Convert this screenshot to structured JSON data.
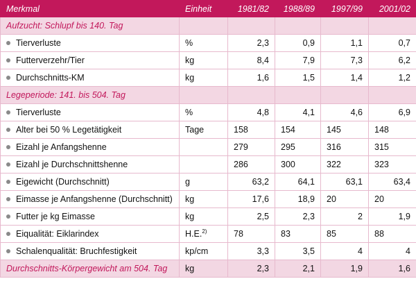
{
  "header": {
    "merkmal": "Merkmal",
    "einheit": "Einheit",
    "years": [
      "1981/82",
      "1988/89",
      "1997/99",
      "2001/02"
    ]
  },
  "sections": [
    {
      "title": "Aufzucht: Schlupf bis 140. Tag",
      "rows": [
        {
          "label": "Tierverluste",
          "unit": "%",
          "values": [
            "2,3",
            "0,9",
            "1,1",
            "0,7"
          ]
        },
        {
          "label": "Futterverzehr/Tier",
          "unit": "kg",
          "values": [
            "8,4",
            "7,9",
            "7,3",
            "6,2"
          ]
        },
        {
          "label": "Durchschnitts-KM",
          "unit": "kg",
          "values": [
            "1,6",
            "1,5",
            "1,4",
            "1,2"
          ]
        }
      ]
    },
    {
      "title": "Legeperiode: 141. bis 504. Tag",
      "rows": [
        {
          "label": "Tierverluste",
          "unit": "%",
          "values": [
            "4,8",
            "4,1",
            "4,6",
            "6,9"
          ]
        },
        {
          "label": "Alter bei 50 % Legetätigkeit",
          "unit": "Tage",
          "values": [
            "158",
            "154",
            "145",
            "148"
          ]
        },
        {
          "label": "Eizahl je Anfangshenne",
          "unit": "",
          "values": [
            "279",
            "295",
            "316",
            "315"
          ]
        },
        {
          "label": "Eizahl je Durchschnittshenne",
          "unit": "",
          "values": [
            "286",
            "300",
            "322",
            "323"
          ]
        },
        {
          "label": "Eigewicht (Durchschnitt)",
          "unit": "g",
          "values": [
            "63,2",
            "64,1",
            "63,1",
            "63,4"
          ]
        },
        {
          "label": "Eimasse je Anfangshenne (Durchschnitt)",
          "unit": "kg",
          "values": [
            "17,6",
            "18,9",
            "20",
            "20"
          ]
        },
        {
          "label": "Futter je kg Eimasse",
          "unit": "kg",
          "values": [
            "2,5",
            "2,3",
            "2",
            "1,9"
          ]
        },
        {
          "label": "Eiqualität: Eiklarindex",
          "unit": "H.E.",
          "unit_sup": "2)",
          "values": [
            "78",
            "83",
            "85",
            "88"
          ]
        },
        {
          "label": "Schalenqualität: Bruchfestigkeit",
          "unit": "kp/cm",
          "values": [
            "3,3",
            "3,5",
            "4",
            "4"
          ]
        }
      ]
    }
  ],
  "footer_row": {
    "label": "Durchschnitts-Körpergewicht am 504. Tag",
    "unit": "kg",
    "values": [
      "2,3",
      "2,1",
      "1,9",
      "1,6"
    ]
  }
}
